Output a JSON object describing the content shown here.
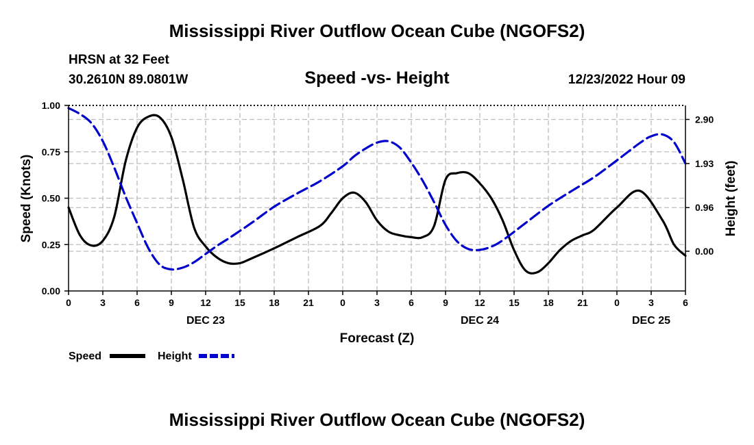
{
  "header": {
    "title": "Mississippi River Outflow Ocean Cube (NGOFS2)",
    "station": "HRSN at 32 Feet",
    "latlon": "30.2610N  89.0801W",
    "datetime": "12/23/2022 Hour 09",
    "footer_title": "Mississippi River Outflow Ocean Cube (NGOFS2)"
  },
  "chart_data": {
    "type": "line",
    "title": "Speed -vs- Height",
    "xlabel": "Forecast (Z)",
    "ylabel": "Speed (Knots)",
    "y2label": "Height (feet)",
    "xlim": [
      0,
      54
    ],
    "ylim": [
      0,
      1.0
    ],
    "y2lim": [
      -0.8742,
      3.2084
    ],
    "x_ticks": [
      0,
      3,
      6,
      9,
      12,
      15,
      18,
      21,
      24,
      27,
      30,
      33,
      36,
      39,
      42,
      45,
      48,
      51,
      54
    ],
    "x_tick_labels": [
      "0",
      "3",
      "6",
      "9",
      "12",
      "15",
      "18",
      "21",
      "0",
      "3",
      "6",
      "9",
      "12",
      "15",
      "18",
      "21",
      "0",
      "3",
      "6"
    ],
    "date_labels": [
      {
        "x": 12,
        "text": "DEC 23"
      },
      {
        "x": 36,
        "text": "DEC 24"
      },
      {
        "x": 51,
        "text": "DEC 25"
      }
    ],
    "y_ticks": [
      0,
      0.25,
      0.5,
      0.75,
      1.0
    ],
    "y_tick_labels": [
      "0.00",
      "0.25",
      "0.50",
      "0.75",
      "1.00"
    ],
    "y2_ticks": [
      0.0,
      0.96,
      1.93,
      2.9
    ],
    "y2_tick_labels": [
      "0.00",
      "0.96",
      "1.93",
      "2.90"
    ],
    "grid": true,
    "series": [
      {
        "name": "Speed",
        "axis": "left",
        "color": "#000000",
        "dash": "solid",
        "x": [
          0,
          1,
          2,
          3,
          4,
          5,
          6,
          7,
          8,
          9,
          10,
          11,
          12,
          13,
          14,
          15,
          16,
          18,
          20,
          22,
          23,
          24,
          25,
          26,
          27,
          28,
          29,
          30,
          31,
          32,
          33,
          34,
          35,
          36,
          37,
          38,
          39,
          40,
          41,
          42,
          43,
          44,
          45,
          46,
          48,
          50,
          52,
          53,
          54
        ],
        "values": [
          0.45,
          0.3,
          0.245,
          0.27,
          0.4,
          0.7,
          0.88,
          0.94,
          0.935,
          0.83,
          0.6,
          0.34,
          0.24,
          0.18,
          0.15,
          0.15,
          0.175,
          0.23,
          0.29,
          0.35,
          0.42,
          0.5,
          0.53,
          0.48,
          0.38,
          0.32,
          0.3,
          0.29,
          0.29,
          0.35,
          0.6,
          0.635,
          0.635,
          0.58,
          0.5,
          0.38,
          0.22,
          0.11,
          0.1,
          0.15,
          0.22,
          0.27,
          0.3,
          0.33,
          0.45,
          0.54,
          0.38,
          0.25,
          0.19
        ]
      },
      {
        "name": "Height",
        "axis": "right",
        "color": "#0000cc",
        "dash": "dashed",
        "x": [
          0,
          1,
          2,
          3,
          4,
          5,
          6,
          7,
          8,
          9,
          10,
          11,
          12,
          13,
          14,
          16,
          18,
          20,
          22,
          24,
          25,
          26,
          27,
          28,
          29,
          30,
          31,
          32,
          33,
          34,
          35,
          36,
          37,
          38,
          40,
          42,
          44,
          46,
          48,
          50,
          51,
          52,
          53,
          54
        ],
        "values": [
          3.15,
          3.02,
          2.82,
          2.42,
          1.84,
          1.2,
          0.62,
          0.06,
          -0.3,
          -0.4,
          -0.36,
          -0.24,
          -0.06,
          0.12,
          0.28,
          0.62,
          0.98,
          1.27,
          1.54,
          1.87,
          2.09,
          2.26,
          2.39,
          2.42,
          2.28,
          1.95,
          1.55,
          1.08,
          0.58,
          0.22,
          0.05,
          0.03,
          0.1,
          0.24,
          0.62,
          1.0,
          1.32,
          1.63,
          2.0,
          2.38,
          2.53,
          2.57,
          2.4,
          1.93
        ]
      }
    ]
  }
}
